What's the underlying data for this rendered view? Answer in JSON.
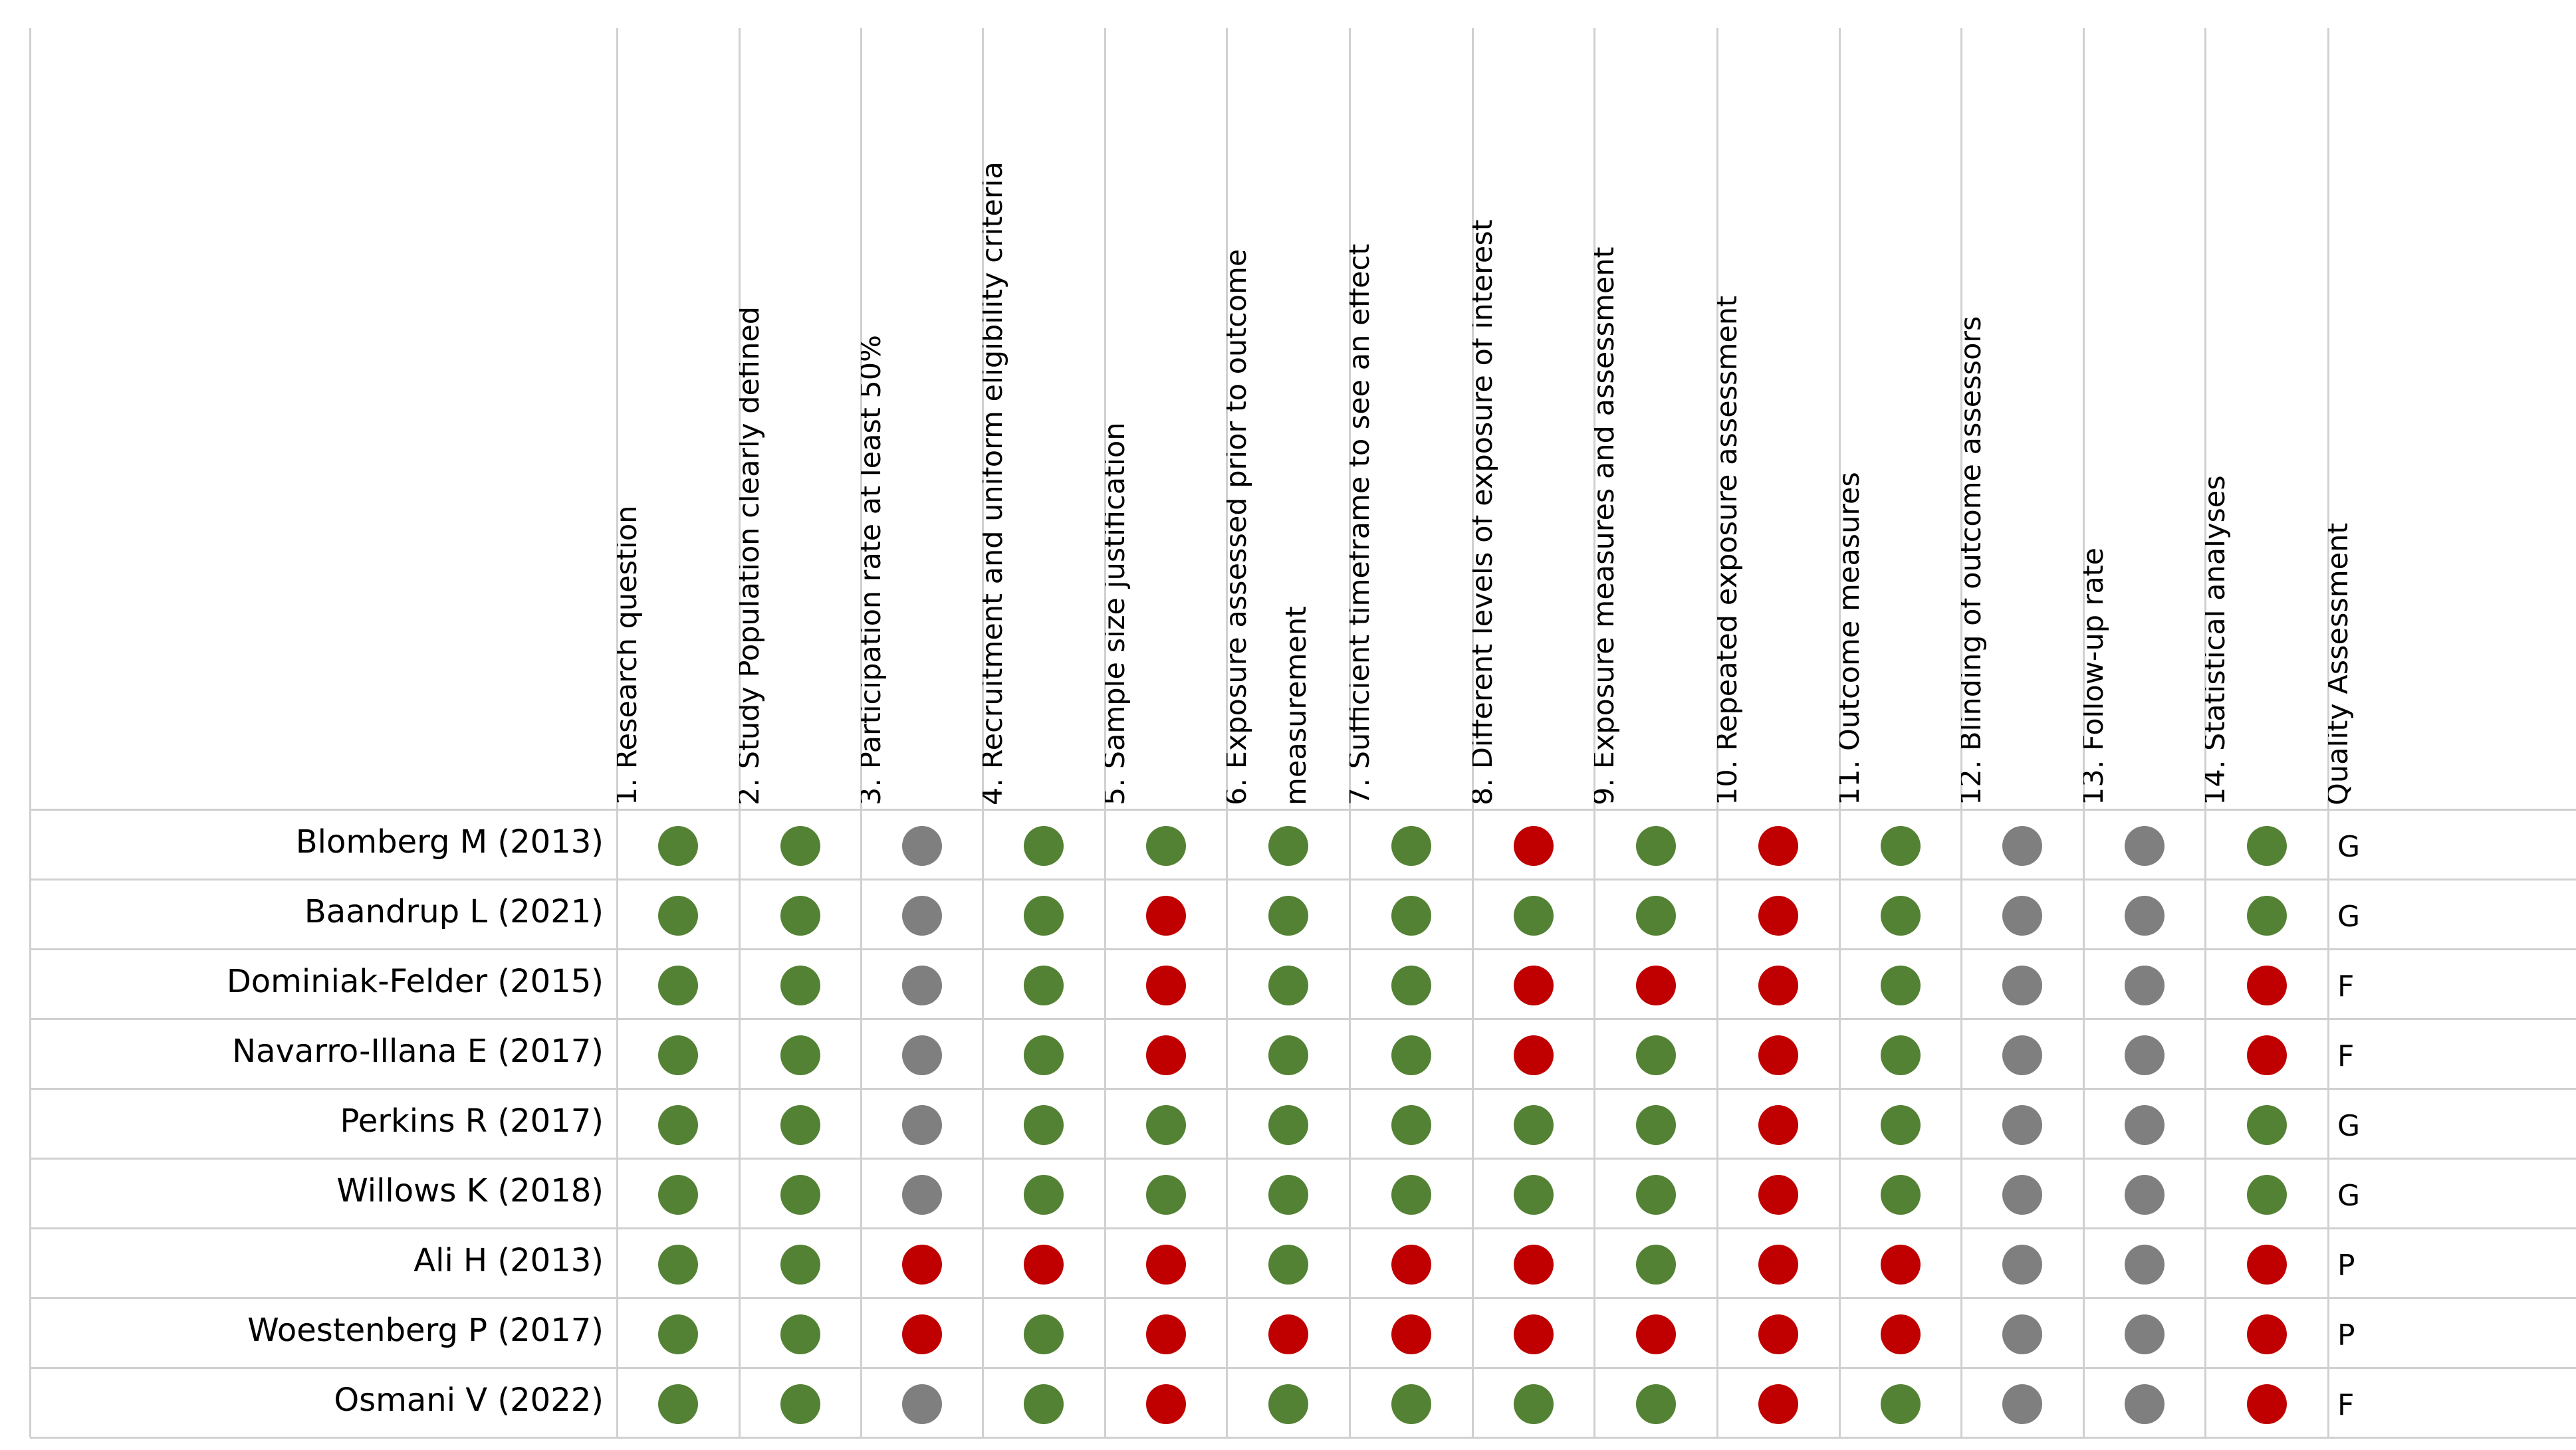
{
  "table": {
    "columns": [
      [
        "1. Research question"
      ],
      [
        "2. Study Population clearly defined"
      ],
      [
        "3. Participation rate at least 50%"
      ],
      [
        "4. Recruitment and uniform eligibility criteria"
      ],
      [
        "5. Sample size justification"
      ],
      [
        "6. Exposure assessed prior to outcome",
        "measurement"
      ],
      [
        "7. Sufficient timeframe to see an effect"
      ],
      [
        "8. Different levels of exposure of interest"
      ],
      [
        "9. Exposure measures and assessment"
      ],
      [
        "10. Repeated exposure assessment"
      ],
      [
        "11. Outcome measures"
      ],
      [
        "12. Blinding of outcome assessors"
      ],
      [
        "13. Follow-up rate"
      ],
      [
        "14. Statistical analyses"
      ],
      [
        "Quality Assessment"
      ]
    ],
    "rating_colors": {
      "green": "#548235",
      "red": "#c00000",
      "grey": "#7f7f7f"
    },
    "rows": [
      {
        "study": "Blomberg M (2013)",
        "ratings": [
          "green",
          "green",
          "grey",
          "green",
          "green",
          "green",
          "green",
          "red",
          "green",
          "red",
          "green",
          "grey",
          "grey",
          "green"
        ],
        "quality": "G"
      },
      {
        "study": "Baandrup L (2021)",
        "ratings": [
          "green",
          "green",
          "grey",
          "green",
          "red",
          "green",
          "green",
          "green",
          "green",
          "red",
          "green",
          "grey",
          "grey",
          "green"
        ],
        "quality": "G"
      },
      {
        "study": "Dominiak-Felder (2015)",
        "ratings": [
          "green",
          "green",
          "grey",
          "green",
          "red",
          "green",
          "green",
          "red",
          "red",
          "red",
          "green",
          "grey",
          "grey",
          "red"
        ],
        "quality": "F"
      },
      {
        "study": "Navarro-Illana E (2017)",
        "ratings": [
          "green",
          "green",
          "grey",
          "green",
          "red",
          "green",
          "green",
          "red",
          "green",
          "red",
          "green",
          "grey",
          "grey",
          "red"
        ],
        "quality": "F"
      },
      {
        "study": "Perkins R (2017)",
        "ratings": [
          "green",
          "green",
          "grey",
          "green",
          "green",
          "green",
          "green",
          "green",
          "green",
          "red",
          "green",
          "grey",
          "grey",
          "green"
        ],
        "quality": "G"
      },
      {
        "study": "Willows K (2018)",
        "ratings": [
          "green",
          "green",
          "grey",
          "green",
          "green",
          "green",
          "green",
          "green",
          "green",
          "red",
          "green",
          "grey",
          "grey",
          "green"
        ],
        "quality": "G"
      },
      {
        "study": "Ali H (2013)",
        "ratings": [
          "green",
          "green",
          "red",
          "red",
          "red",
          "green",
          "red",
          "red",
          "green",
          "red",
          "red",
          "grey",
          "grey",
          "red"
        ],
        "quality": "P"
      },
      {
        "study": "Woestenberg P (2017)",
        "ratings": [
          "green",
          "green",
          "red",
          "green",
          "red",
          "red",
          "red",
          "red",
          "red",
          "red",
          "red",
          "grey",
          "grey",
          "red"
        ],
        "quality": "P"
      },
      {
        "study": "Osmani V (2022)",
        "ratings": [
          "green",
          "green",
          "grey",
          "green",
          "red",
          "green",
          "green",
          "green",
          "green",
          "red",
          "green",
          "grey",
          "grey",
          "red"
        ],
        "quality": "F"
      }
    ]
  }
}
